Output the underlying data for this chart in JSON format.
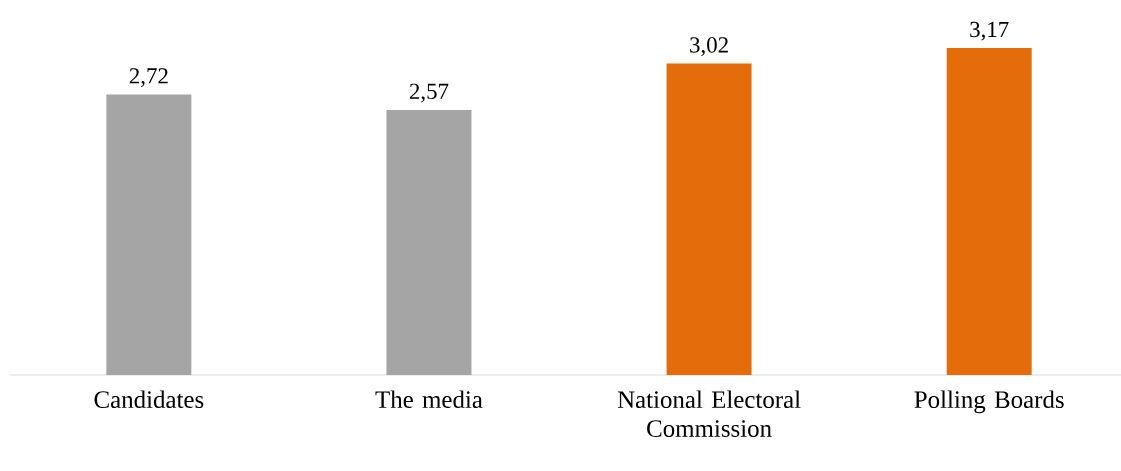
{
  "chart_data": {
    "type": "bar",
    "categories": [
      "Candidates",
      "The media",
      "National Electoral Commission",
      "Polling Boards"
    ],
    "values": [
      2.72,
      2.57,
      3.02,
      3.17
    ],
    "value_labels": [
      "2,72",
      "2,57",
      "3,02",
      "3,17"
    ],
    "colors": [
      "#a5a5a5",
      "#a5a5a5",
      "#e46c0a",
      "#e46c0a"
    ],
    "tick_labels": "x"
  }
}
